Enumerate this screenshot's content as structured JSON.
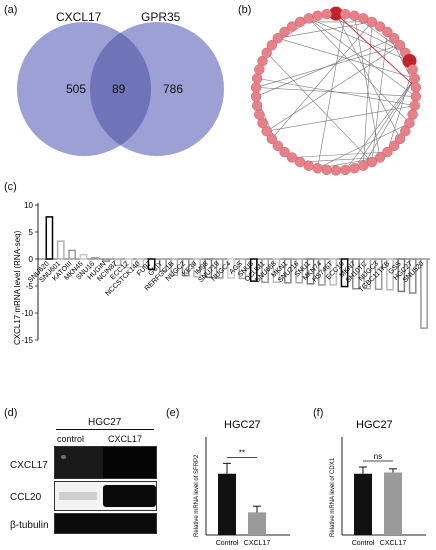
{
  "panel_labels": {
    "a": "(a)",
    "b": "(b)",
    "c": "(c)",
    "d": "(d)",
    "e": "(e)",
    "f": "(f)"
  },
  "venn": {
    "set1_label": "CXCL17",
    "set2_label": "GPR35",
    "only1": "505",
    "overlap": "89",
    "only2": "786",
    "colors": {
      "fill": "#8b8fcc",
      "overlap": "#6f74b8"
    }
  },
  "network": {
    "node_color": "#e8808a",
    "hub_color": "#c0232e",
    "node_count": 54
  },
  "chart_data": [
    {
      "type": "bar",
      "title": "",
      "xlabel": "",
      "ylabel": "CXCL17 mRNA level (RNA-seq)",
      "ylim": [
        -15,
        10
      ],
      "yticks": [
        -15,
        -10,
        -5,
        0,
        5,
        10
      ],
      "grid": false,
      "categories": [
        "SNU620",
        "SNU601",
        "KATOIII",
        "MKN45",
        "SNU16",
        "HUGIN",
        "NCIN87",
        "ECC12",
        "NCCSTCK140",
        "FU97",
        "GCIY",
        "RERFGC1B",
        "NUGC2",
        "KE39",
        "IM95",
        "SNU719",
        "NUGC4",
        "AGS",
        "SNU5",
        "OCUM1",
        "SNU668",
        "MKN1",
        "SNU216",
        "SNU1",
        "MKN74",
        "HS746T",
        "ECC10",
        "MKN7",
        "SH10TC",
        "NUGC3",
        "TGBC11TKB",
        "GSS",
        "HGC27",
        "SNU520"
      ],
      "values": [
        7.8,
        3.3,
        1.6,
        0.8,
        0.2,
        -0.4,
        -1.2,
        -1.6,
        -1.4,
        -1.9,
        -2.2,
        -3.0,
        -3.1,
        -3.3,
        -3.4,
        -3.5,
        -3.5,
        -3.6,
        -4.1,
        -4.3,
        -4.3,
        -4.4,
        -4.4,
        -4.6,
        -4.8,
        -4.8,
        -5.1,
        -5.5,
        -5.5,
        -5.6,
        -5.7,
        -6.0,
        -6.3,
        -12.8
      ]
    },
    {
      "type": "bar",
      "title": "HGC27",
      "ylabel": "Relative mRNA level of SFRP2",
      "categories": [
        "Control",
        "CXCL17"
      ],
      "values": [
        1.0,
        0.37
      ],
      "errors": [
        0.17,
        0.1
      ],
      "colors": [
        "#111111",
        "#9a9a9a"
      ],
      "ylim": [
        0,
        1.6
      ],
      "annotation": "**"
    },
    {
      "type": "bar",
      "title": "HGC27",
      "ylabel": "Relative mRNA level of CDX1",
      "categories": [
        "Control",
        "CXCL17"
      ],
      "values": [
        1.0,
        1.02
      ],
      "errors": [
        0.11,
        0.06
      ],
      "colors": [
        "#111111",
        "#9a9a9a"
      ],
      "ylim": [
        0,
        1.6
      ],
      "annotation": "ns"
    }
  ],
  "western": {
    "cell_line": "HGC27",
    "lanes": [
      "control",
      "CXCL17"
    ],
    "rows": [
      "CXCL17",
      "CCL20",
      "β-tubulin"
    ]
  }
}
